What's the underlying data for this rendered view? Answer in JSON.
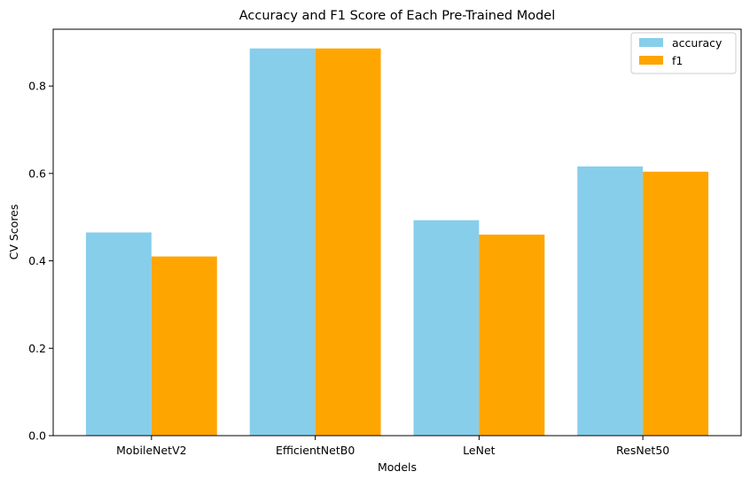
{
  "chart_data": {
    "type": "bar",
    "title": "Accuracy and F1 Score of Each Pre-Trained Model",
    "xlabel": "Models",
    "ylabel": "CV Scores",
    "categories": [
      "MobileNetV2",
      "EfficientNetB0",
      "LeNet",
      "ResNet50"
    ],
    "series": [
      {
        "name": "accuracy",
        "values": [
          0.465,
          0.886,
          0.493,
          0.616
        ],
        "color": "#87CEEB"
      },
      {
        "name": "f1",
        "values": [
          0.41,
          0.886,
          0.46,
          0.604
        ],
        "color": "#FFA500"
      }
    ],
    "ylim": [
      0,
      0.93
    ],
    "yticks": [
      "0.0",
      "0.2",
      "0.4",
      "0.6",
      "0.8"
    ],
    "grid": false,
    "legend_position": "top-right"
  }
}
